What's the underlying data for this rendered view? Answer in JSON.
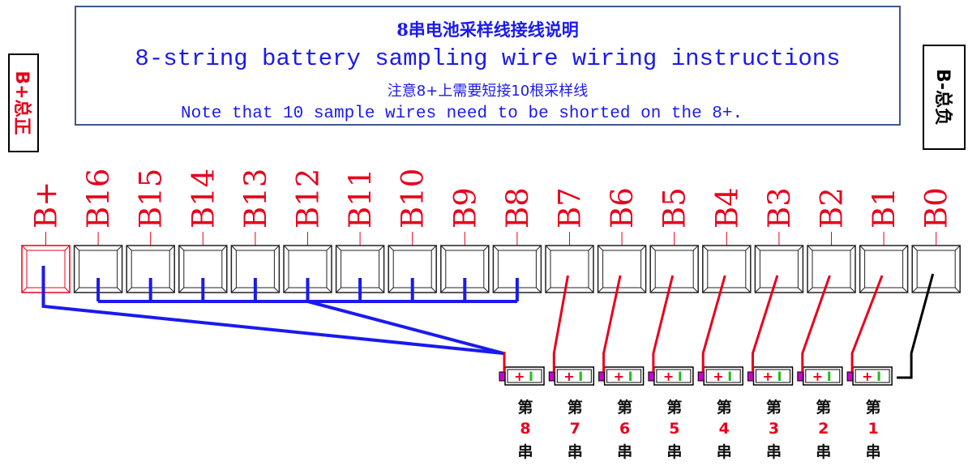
{
  "header": {
    "title_cn": "8串电池采样线接线说明",
    "title_en": "8-string battery sampling wire wiring instructions",
    "note_cn": "注意8+上需要短接10根采样线",
    "note_en": "Note that 10 sample wires need to be shorted on the 8+."
  },
  "side_labels": {
    "left": "B+总正",
    "right": "B-总负"
  },
  "pins": [
    "B+",
    "B16",
    "B15",
    "B14",
    "B13",
    "B12",
    "B11",
    "B10",
    "B9",
    "B8",
    "B7",
    "B6",
    "B5",
    "B4",
    "B3",
    "B2",
    "B1",
    "B0"
  ],
  "cells": [
    {
      "prefix": "第",
      "num": "8",
      "suffix": "串"
    },
    {
      "prefix": "第",
      "num": "7",
      "suffix": "串"
    },
    {
      "prefix": "第",
      "num": "6",
      "suffix": "串"
    },
    {
      "prefix": "第",
      "num": "5",
      "suffix": "串"
    },
    {
      "prefix": "第",
      "num": "4",
      "suffix": "串"
    },
    {
      "prefix": "第",
      "num": "3",
      "suffix": "串"
    },
    {
      "prefix": "第",
      "num": "2",
      "suffix": "串"
    },
    {
      "prefix": "第",
      "num": "1",
      "suffix": "串"
    }
  ],
  "battery_symbol": {
    "plus": "+",
    "minus": "I"
  },
  "colors": {
    "title": "#1a1aee",
    "pin_label": "#e8001c",
    "short_wire": "#1a1aee",
    "sample_wire": "#e8001c",
    "negative_wire": "#000000",
    "frame": "#3b5a86"
  }
}
